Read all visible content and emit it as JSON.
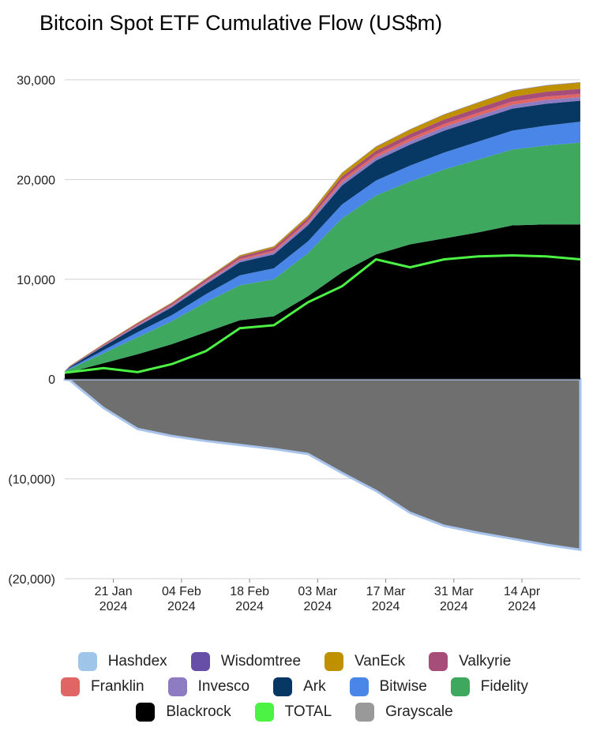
{
  "chart_data": {
    "type": "stacked_area",
    "title": "Bitcoin Spot ETF Cumulative Flow (US$m)",
    "x": [
      "2024-01-11",
      "2024-01-12",
      "2024-01-19",
      "2024-01-26",
      "2024-02-02",
      "2024-02-09",
      "2024-02-16",
      "2024-02-23",
      "2024-03-01",
      "2024-03-08",
      "2024-03-15",
      "2024-03-22",
      "2024-03-29",
      "2024-04-05",
      "2024-04-12",
      "2024-04-19",
      "2024-04-26"
    ],
    "xlim": [
      "2024-01-11",
      "2024-04-26"
    ],
    "xticks": [
      {
        "value": "2024-01-21",
        "label": "21 Jan 2024"
      },
      {
        "value": "2024-02-04",
        "label": "04 Feb 2024"
      },
      {
        "value": "2024-02-18",
        "label": "18 Feb 2024"
      },
      {
        "value": "2024-03-03",
        "label": "03 Mar 2024"
      },
      {
        "value": "2024-03-17",
        "label": "17 Mar 2024"
      },
      {
        "value": "2024-03-31",
        "label": "31 Mar 2024"
      },
      {
        "value": "2024-04-14",
        "label": "14 Apr 2024"
      }
    ],
    "ylim": [
      -20000,
      30000
    ],
    "yticks": [
      {
        "value": -20000,
        "label": "(20,000)"
      },
      {
        "value": -10000,
        "label": "(10,000)"
      },
      0,
      {
        "value": 10000,
        "label": "10,000"
      },
      {
        "value": 20000,
        "label": "20,000"
      },
      {
        "value": 30000,
        "label": "30,000"
      }
    ],
    "grid": true,
    "legend": "bottom",
    "series": [
      {
        "name": "Hashdex",
        "color": "#9fc5e8",
        "values": [
          1,
          2,
          3,
          4,
          5,
          7,
          9,
          11,
          13,
          15,
          17,
          19,
          20,
          22,
          24,
          25,
          25
        ]
      },
      {
        "name": "Wisdomtree",
        "color": "#674ea7",
        "values": [
          3,
          5,
          8,
          10,
          12,
          15,
          18,
          20,
          25,
          28,
          30,
          30,
          30,
          30,
          30,
          30,
          30
        ]
      },
      {
        "name": "VanEck",
        "color": "#bf9000",
        "values": [
          10,
          30,
          50,
          60,
          70,
          80,
          120,
          150,
          200,
          350,
          400,
          450,
          500,
          550,
          600,
          620,
          630
        ]
      },
      {
        "name": "Valkyrie",
        "color": "#a64d79",
        "values": [
          20,
          50,
          100,
          130,
          160,
          190,
          230,
          260,
          300,
          360,
          390,
          420,
          440,
          460,
          480,
          490,
          500
        ]
      },
      {
        "name": "Franklin",
        "color": "#e06666",
        "values": [
          10,
          20,
          40,
          70,
          90,
          120,
          150,
          170,
          200,
          250,
          270,
          300,
          310,
          320,
          330,
          330,
          330
        ]
      },
      {
        "name": "Invesco",
        "color": "#8e7cc3",
        "values": [
          10,
          20,
          50,
          100,
          150,
          180,
          200,
          220,
          250,
          300,
          320,
          340,
          360,
          380,
          380,
          380,
          360
        ]
      },
      {
        "name": "Ark",
        "color": "#073763",
        "values": [
          20,
          100,
          400,
          600,
          800,
          1000,
          1300,
          1400,
          1600,
          1900,
          2000,
          2100,
          2200,
          2200,
          2200,
          2200,
          2100
        ]
      },
      {
        "name": "Bitwise",
        "color": "#4a86e8",
        "values": [
          30,
          100,
          300,
          500,
          600,
          800,
          1000,
          1100,
          1200,
          1400,
          1500,
          1600,
          1700,
          1800,
          1900,
          2000,
          2100
        ]
      },
      {
        "name": "Fidelity",
        "color": "#3da85e",
        "values": [
          200,
          300,
          1000,
          1700,
          2300,
          3000,
          3500,
          3700,
          4300,
          5400,
          5900,
          6300,
          6900,
          7300,
          7600,
          7900,
          8200
        ]
      },
      {
        "name": "Blackrock",
        "color": "#000000",
        "values": [
          500,
          700,
          1600,
          2500,
          3500,
          4700,
          5900,
          6300,
          8300,
          10700,
          12500,
          13500,
          14100,
          14700,
          15400,
          15500,
          15500
        ]
      },
      {
        "name": "TOTAL",
        "color": "#4cf244",
        "type": "line",
        "values": [
          650,
          700,
          1100,
          700,
          1500,
          2800,
          5100,
          5400,
          7700,
          9300,
          12000,
          11200,
          12000,
          12300,
          12400,
          12300,
          12000
        ]
      },
      {
        "name": "Grayscale",
        "color": "#999999",
        "values": [
          -50,
          -100,
          -2900,
          -5000,
          -5700,
          -6200,
          -6600,
          -7000,
          -7500,
          -9400,
          -11200,
          -13400,
          -14700,
          -15400,
          -16000,
          -16600,
          -17100
        ]
      }
    ]
  }
}
